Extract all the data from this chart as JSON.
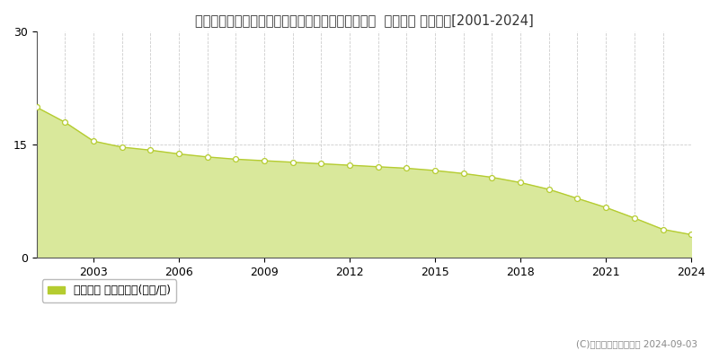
{
  "title": "愛知県知多郡南知多町大字山海字荒布越１２０番２  地価公示 地価推移[2001-2024]",
  "years": [
    2001,
    2002,
    2003,
    2004,
    2005,
    2006,
    2007,
    2008,
    2009,
    2010,
    2011,
    2012,
    2013,
    2014,
    2015,
    2016,
    2017,
    2018,
    2019,
    2020,
    2021,
    2022,
    2023,
    2024
  ],
  "values": [
    20.0,
    18.0,
    15.5,
    14.7,
    14.3,
    13.8,
    13.4,
    13.1,
    12.9,
    12.7,
    12.5,
    12.3,
    12.1,
    11.9,
    11.6,
    11.2,
    10.7,
    10.0,
    9.1,
    7.9,
    6.7,
    5.3,
    3.8,
    3.1
  ],
  "ylim": [
    0,
    30
  ],
  "yticks": [
    0,
    15,
    30
  ],
  "xticks": [
    2003,
    2006,
    2009,
    2012,
    2015,
    2018,
    2021,
    2024
  ],
  "line_color": "#b5cc30",
  "fill_color": "#d9e89b",
  "marker_facecolor": "#ffffff",
  "marker_edgecolor": "#b5cc30",
  "grid_color": "#cccccc",
  "bg_color": "#ffffff",
  "legend_label": "地価公示 平均坪単価(万円/坪)",
  "legend_marker_color": "#b5cc30",
  "copyright_text": "(C)土地価格ドットコム 2024-09-03",
  "title_fontsize": 10.5,
  "axis_fontsize": 9,
  "legend_fontsize": 9
}
